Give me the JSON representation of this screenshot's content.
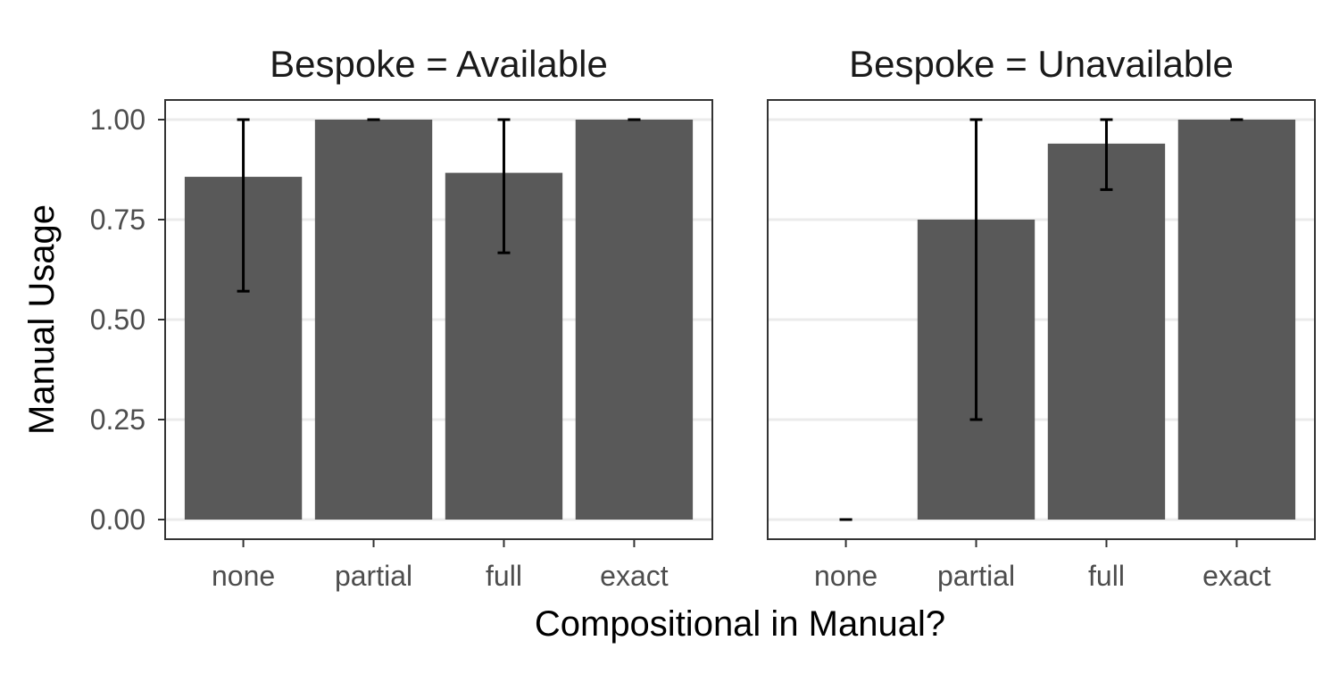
{
  "chart_data": {
    "type": "bar",
    "xlabel": "Compositional in Manual?",
    "ylabel": "Manual Usage",
    "ylim": [
      0,
      1
    ],
    "yticks": [
      0.0,
      0.25,
      0.5,
      0.75,
      1.0
    ],
    "ytick_labels": [
      "0.00",
      "0.25",
      "0.50",
      "0.75",
      "1.00"
    ],
    "categories": [
      "none",
      "partial",
      "full",
      "exact"
    ],
    "grid": true,
    "colors": {
      "bar": "#595959",
      "errorbar": "#000000",
      "grid": "#ebebeb",
      "panel_border": "#333333",
      "tick_label": "#4d4d4d"
    },
    "facets": [
      {
        "title": "Bespoke = Available",
        "values": [
          0.857,
          1.0,
          0.867,
          1.0
        ],
        "error_low": [
          0.571,
          1.0,
          0.667,
          1.0
        ],
        "error_high": [
          1.0,
          1.0,
          1.0,
          1.0
        ]
      },
      {
        "title": "Bespoke = Unavailable",
        "values": [
          0.0,
          0.75,
          0.94,
          1.0
        ],
        "error_low": [
          0.0,
          0.25,
          0.825,
          1.0
        ],
        "error_high": [
          0.0,
          1.0,
          1.0,
          1.0
        ]
      }
    ]
  }
}
